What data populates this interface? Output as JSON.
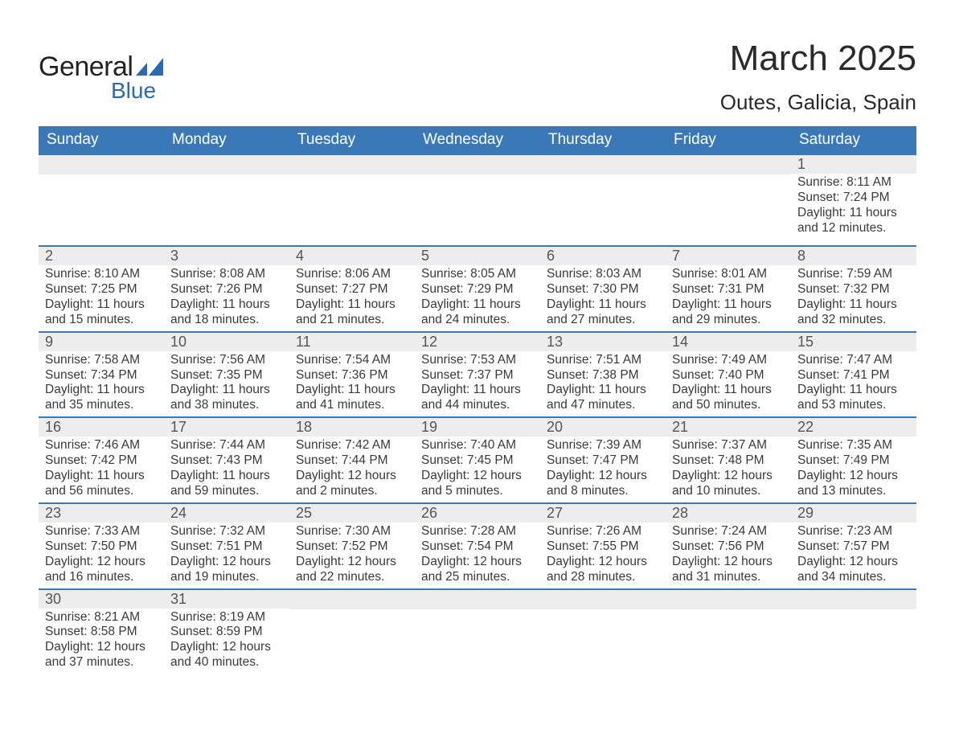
{
  "brand": {
    "line1": "General",
    "line2": "Blue",
    "tri_color": "#2d6aad"
  },
  "title": {
    "month": "March 2025",
    "location": "Outes, Galicia, Spain"
  },
  "colors": {
    "header_bg": "#3b78b8",
    "header_text": "#ffffff",
    "numband_bg": "#ededed",
    "numband_text": "#555555",
    "text": "#3a3a3a",
    "rule": "#3b78b8",
    "page_bg": "#ffffff"
  },
  "calendar": {
    "day_headers": [
      "Sunday",
      "Monday",
      "Tuesday",
      "Wednesday",
      "Thursday",
      "Friday",
      "Saturday"
    ],
    "weeks": [
      [
        {
          "n": "",
          "lines": []
        },
        {
          "n": "",
          "lines": []
        },
        {
          "n": "",
          "lines": []
        },
        {
          "n": "",
          "lines": []
        },
        {
          "n": "",
          "lines": []
        },
        {
          "n": "",
          "lines": []
        },
        {
          "n": "1",
          "lines": [
            "Sunrise: 8:11 AM",
            "Sunset: 7:24 PM",
            "Daylight: 11 hours",
            "and 12 minutes."
          ]
        }
      ],
      [
        {
          "n": "2",
          "lines": [
            "Sunrise: 8:10 AM",
            "Sunset: 7:25 PM",
            "Daylight: 11 hours",
            "and 15 minutes."
          ]
        },
        {
          "n": "3",
          "lines": [
            "Sunrise: 8:08 AM",
            "Sunset: 7:26 PM",
            "Daylight: 11 hours",
            "and 18 minutes."
          ]
        },
        {
          "n": "4",
          "lines": [
            "Sunrise: 8:06 AM",
            "Sunset: 7:27 PM",
            "Daylight: 11 hours",
            "and 21 minutes."
          ]
        },
        {
          "n": "5",
          "lines": [
            "Sunrise: 8:05 AM",
            "Sunset: 7:29 PM",
            "Daylight: 11 hours",
            "and 24 minutes."
          ]
        },
        {
          "n": "6",
          "lines": [
            "Sunrise: 8:03 AM",
            "Sunset: 7:30 PM",
            "Daylight: 11 hours",
            "and 27 minutes."
          ]
        },
        {
          "n": "7",
          "lines": [
            "Sunrise: 8:01 AM",
            "Sunset: 7:31 PM",
            "Daylight: 11 hours",
            "and 29 minutes."
          ]
        },
        {
          "n": "8",
          "lines": [
            "Sunrise: 7:59 AM",
            "Sunset: 7:32 PM",
            "Daylight: 11 hours",
            "and 32 minutes."
          ]
        }
      ],
      [
        {
          "n": "9",
          "lines": [
            "Sunrise: 7:58 AM",
            "Sunset: 7:34 PM",
            "Daylight: 11 hours",
            "and 35 minutes."
          ]
        },
        {
          "n": "10",
          "lines": [
            "Sunrise: 7:56 AM",
            "Sunset: 7:35 PM",
            "Daylight: 11 hours",
            "and 38 minutes."
          ]
        },
        {
          "n": "11",
          "lines": [
            "Sunrise: 7:54 AM",
            "Sunset: 7:36 PM",
            "Daylight: 11 hours",
            "and 41 minutes."
          ]
        },
        {
          "n": "12",
          "lines": [
            "Sunrise: 7:53 AM",
            "Sunset: 7:37 PM",
            "Daylight: 11 hours",
            "and 44 minutes."
          ]
        },
        {
          "n": "13",
          "lines": [
            "Sunrise: 7:51 AM",
            "Sunset: 7:38 PM",
            "Daylight: 11 hours",
            "and 47 minutes."
          ]
        },
        {
          "n": "14",
          "lines": [
            "Sunrise: 7:49 AM",
            "Sunset: 7:40 PM",
            "Daylight: 11 hours",
            "and 50 minutes."
          ]
        },
        {
          "n": "15",
          "lines": [
            "Sunrise: 7:47 AM",
            "Sunset: 7:41 PM",
            "Daylight: 11 hours",
            "and 53 minutes."
          ]
        }
      ],
      [
        {
          "n": "16",
          "lines": [
            "Sunrise: 7:46 AM",
            "Sunset: 7:42 PM",
            "Daylight: 11 hours",
            "and 56 minutes."
          ]
        },
        {
          "n": "17",
          "lines": [
            "Sunrise: 7:44 AM",
            "Sunset: 7:43 PM",
            "Daylight: 11 hours",
            "and 59 minutes."
          ]
        },
        {
          "n": "18",
          "lines": [
            "Sunrise: 7:42 AM",
            "Sunset: 7:44 PM",
            "Daylight: 12 hours",
            "and 2 minutes."
          ]
        },
        {
          "n": "19",
          "lines": [
            "Sunrise: 7:40 AM",
            "Sunset: 7:45 PM",
            "Daylight: 12 hours",
            "and 5 minutes."
          ]
        },
        {
          "n": "20",
          "lines": [
            "Sunrise: 7:39 AM",
            "Sunset: 7:47 PM",
            "Daylight: 12 hours",
            "and 8 minutes."
          ]
        },
        {
          "n": "21",
          "lines": [
            "Sunrise: 7:37 AM",
            "Sunset: 7:48 PM",
            "Daylight: 12 hours",
            "and 10 minutes."
          ]
        },
        {
          "n": "22",
          "lines": [
            "Sunrise: 7:35 AM",
            "Sunset: 7:49 PM",
            "Daylight: 12 hours",
            "and 13 minutes."
          ]
        }
      ],
      [
        {
          "n": "23",
          "lines": [
            "Sunrise: 7:33 AM",
            "Sunset: 7:50 PM",
            "Daylight: 12 hours",
            "and 16 minutes."
          ]
        },
        {
          "n": "24",
          "lines": [
            "Sunrise: 7:32 AM",
            "Sunset: 7:51 PM",
            "Daylight: 12 hours",
            "and 19 minutes."
          ]
        },
        {
          "n": "25",
          "lines": [
            "Sunrise: 7:30 AM",
            "Sunset: 7:52 PM",
            "Daylight: 12 hours",
            "and 22 minutes."
          ]
        },
        {
          "n": "26",
          "lines": [
            "Sunrise: 7:28 AM",
            "Sunset: 7:54 PM",
            "Daylight: 12 hours",
            "and 25 minutes."
          ]
        },
        {
          "n": "27",
          "lines": [
            "Sunrise: 7:26 AM",
            "Sunset: 7:55 PM",
            "Daylight: 12 hours",
            "and 28 minutes."
          ]
        },
        {
          "n": "28",
          "lines": [
            "Sunrise: 7:24 AM",
            "Sunset: 7:56 PM",
            "Daylight: 12 hours",
            "and 31 minutes."
          ]
        },
        {
          "n": "29",
          "lines": [
            "Sunrise: 7:23 AM",
            "Sunset: 7:57 PM",
            "Daylight: 12 hours",
            "and 34 minutes."
          ]
        }
      ],
      [
        {
          "n": "30",
          "lines": [
            "Sunrise: 8:21 AM",
            "Sunset: 8:58 PM",
            "Daylight: 12 hours",
            "and 37 minutes."
          ]
        },
        {
          "n": "31",
          "lines": [
            "Sunrise: 8:19 AM",
            "Sunset: 8:59 PM",
            "Daylight: 12 hours",
            "and 40 minutes."
          ]
        },
        {
          "n": "",
          "lines": []
        },
        {
          "n": "",
          "lines": []
        },
        {
          "n": "",
          "lines": []
        },
        {
          "n": "",
          "lines": []
        },
        {
          "n": "",
          "lines": []
        }
      ]
    ]
  }
}
